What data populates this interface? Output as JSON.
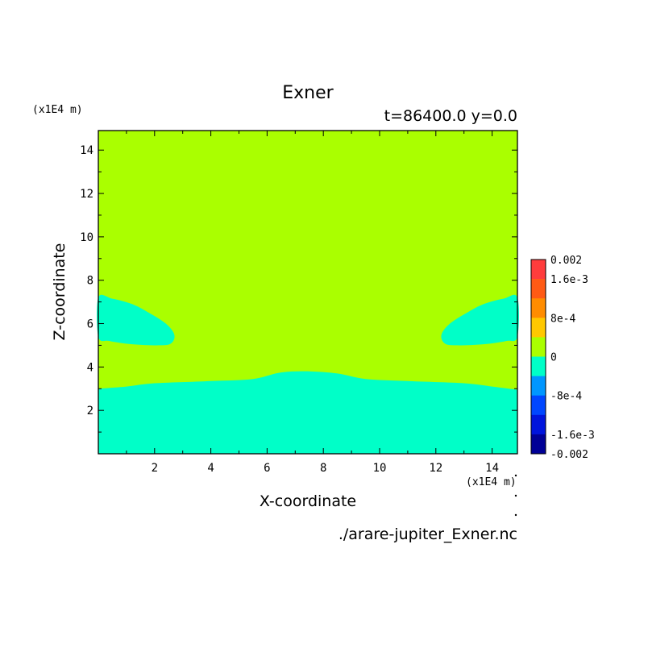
{
  "chart_data": {
    "type": "heatmap",
    "title": "Exner",
    "subtitle": "t=86400.0 y=0.0",
    "xlabel": "X-coordinate",
    "ylabel": "Z-coordinate",
    "x_unit": "(x1E4 m)",
    "y_unit": "(x1E4 m)",
    "footer": "./arare-jupiter_Exner.nc",
    "xlim": [
      0,
      14.9
    ],
    "ylim": [
      0,
      14.9
    ],
    "x_ticks": [
      "2",
      "4",
      "6",
      "8",
      "10",
      "12",
      "14"
    ],
    "y_ticks": [
      "2",
      "4",
      "6",
      "8",
      "10",
      "12",
      "14"
    ],
    "colorbar": {
      "labels": [
        "0.002",
        "1.6e-3",
        "8e-4",
        "0",
        "-8e-4",
        "-1.6e-3",
        "-0.002"
      ],
      "levels": [
        0.002,
        0.0016,
        0.0012,
        0.0008,
        0.0004,
        0,
        -0.0004,
        -0.0008,
        -0.0012,
        -0.0016,
        -0.002
      ],
      "colors": [
        "#ff3c3c",
        "#ff5a14",
        "#ff8c00",
        "#ffc800",
        "#aaff00",
        "#00ffc8",
        "#0096ff",
        "#0046ff",
        "#0014dc",
        "#000096"
      ]
    },
    "fill_background": "#aaff00",
    "fill_negative": "#00ffc8",
    "regions": [
      {
        "name": "lower-negative-band",
        "value_range": [
          -0.0004,
          0
        ],
        "boundary": [
          [
            0,
            3.0
          ],
          [
            1,
            3.1
          ],
          [
            2,
            3.25
          ],
          [
            4,
            3.35
          ],
          [
            5.5,
            3.45
          ],
          [
            6.5,
            3.75
          ],
          [
            7.5,
            3.8
          ],
          [
            8.5,
            3.7
          ],
          [
            9.5,
            3.45
          ],
          [
            11,
            3.35
          ],
          [
            13,
            3.25
          ],
          [
            14,
            3.1
          ],
          [
            14.9,
            2.95
          ]
        ]
      },
      {
        "name": "left-negative-blob",
        "value_range": [
          -0.0004,
          0
        ],
        "outline": [
          [
            0,
            7.2
          ],
          [
            0.5,
            7.15
          ],
          [
            1.2,
            6.9
          ],
          [
            1.8,
            6.5
          ],
          [
            2.4,
            6.0
          ],
          [
            2.7,
            5.5
          ],
          [
            2.6,
            5.1
          ],
          [
            2.2,
            5.0
          ],
          [
            1.2,
            5.05
          ],
          [
            0.4,
            5.2
          ],
          [
            0,
            5.4
          ]
        ]
      },
      {
        "name": "right-negative-blob",
        "value_range": [
          -0.0004,
          0
        ],
        "outline": [
          [
            14.9,
            7.2
          ],
          [
            14.4,
            7.15
          ],
          [
            13.7,
            6.9
          ],
          [
            13.1,
            6.5
          ],
          [
            12.5,
            6.0
          ],
          [
            12.2,
            5.5
          ],
          [
            12.3,
            5.1
          ],
          [
            12.7,
            5.0
          ],
          [
            13.7,
            5.05
          ],
          [
            14.5,
            5.2
          ],
          [
            14.9,
            5.4
          ]
        ]
      }
    ]
  }
}
